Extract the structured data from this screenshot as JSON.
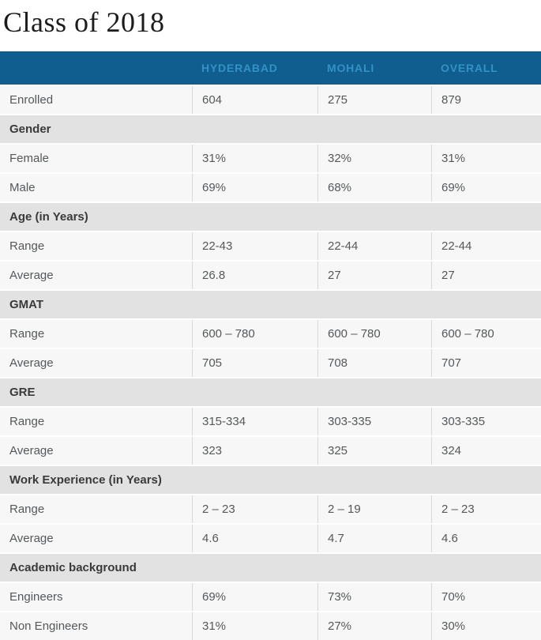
{
  "page": {
    "title": "Class of 2018"
  },
  "colors": {
    "header_bg": "#0f5e8f",
    "header_text": "#3391c6",
    "data_row_bg": "#f7f7f7",
    "section_row_bg": "#e2e2e2",
    "data_text": "#55585a",
    "section_text": "#3a3a3a",
    "divider": "#d8d8d8"
  },
  "table": {
    "columns": [
      "",
      "HYDERABAD",
      "MOHALI",
      "OVERALL"
    ],
    "rows": [
      {
        "type": "data",
        "label": "Enrolled",
        "values": [
          "604",
          "275",
          "879"
        ]
      },
      {
        "type": "section",
        "label": "Gender"
      },
      {
        "type": "data",
        "label": "Female",
        "values": [
          "31%",
          "32%",
          "31%"
        ]
      },
      {
        "type": "data",
        "label": "Male",
        "values": [
          "69%",
          "68%",
          "69%"
        ]
      },
      {
        "type": "section",
        "label": "Age (in Years)"
      },
      {
        "type": "data",
        "label": "Range",
        "values": [
          "22-43",
          "22-44",
          "22-44"
        ]
      },
      {
        "type": "data",
        "label": "Average",
        "values": [
          "26.8",
          "27",
          "27"
        ]
      },
      {
        "type": "section",
        "label": "GMAT"
      },
      {
        "type": "data",
        "label": "Range",
        "values": [
          "600 – 780",
          "600 – 780",
          "600 – 780"
        ]
      },
      {
        "type": "data",
        "label": "Average",
        "values": [
          "705",
          "708",
          "707"
        ]
      },
      {
        "type": "section",
        "label": "GRE"
      },
      {
        "type": "data",
        "label": "Range",
        "values": [
          "315-334",
          "303-335",
          "303-335"
        ]
      },
      {
        "type": "data",
        "label": "Average",
        "values": [
          "323",
          "325",
          "324"
        ]
      },
      {
        "type": "section",
        "label": "Work Experience (in Years)"
      },
      {
        "type": "data",
        "label": "Range",
        "values": [
          "2 – 23",
          "2 – 19",
          "2 – 23"
        ]
      },
      {
        "type": "data",
        "label": "Average",
        "values": [
          "4.6",
          "4.7",
          "4.6"
        ]
      },
      {
        "type": "section",
        "label": "Academic background"
      },
      {
        "type": "data",
        "label": "Engineers",
        "values": [
          "69%",
          "73%",
          "70%"
        ]
      },
      {
        "type": "data",
        "label": "Non Engineers",
        "values": [
          "31%",
          "27%",
          "30%"
        ]
      }
    ]
  },
  "chart_data": {
    "type": "table",
    "title": "Class of 2018",
    "categories": [
      "HYDERABAD",
      "MOHALI",
      "OVERALL"
    ],
    "series": [
      {
        "name": "Enrolled",
        "values": [
          604,
          275,
          879
        ]
      },
      {
        "name": "Gender - Female",
        "values": [
          "31%",
          "32%",
          "31%"
        ]
      },
      {
        "name": "Gender - Male",
        "values": [
          "69%",
          "68%",
          "69%"
        ]
      },
      {
        "name": "Age (in Years) - Range",
        "values": [
          "22-43",
          "22-44",
          "22-44"
        ]
      },
      {
        "name": "Age (in Years) - Average",
        "values": [
          26.8,
          27,
          27
        ]
      },
      {
        "name": "GMAT - Range",
        "values": [
          "600 – 780",
          "600 – 780",
          "600 – 780"
        ]
      },
      {
        "name": "GMAT - Average",
        "values": [
          705,
          708,
          707
        ]
      },
      {
        "name": "GRE - Range",
        "values": [
          "315-334",
          "303-335",
          "303-335"
        ]
      },
      {
        "name": "GRE - Average",
        "values": [
          323,
          325,
          324
        ]
      },
      {
        "name": "Work Experience (in Years) - Range",
        "values": [
          "2 – 23",
          "2 – 19",
          "2 – 23"
        ]
      },
      {
        "name": "Work Experience (in Years) - Average",
        "values": [
          4.6,
          4.7,
          4.6
        ]
      },
      {
        "name": "Academic background - Engineers",
        "values": [
          "69%",
          "73%",
          "70%"
        ]
      },
      {
        "name": "Academic background - Non Engineers",
        "values": [
          "31%",
          "27%",
          "30%"
        ]
      }
    ]
  }
}
